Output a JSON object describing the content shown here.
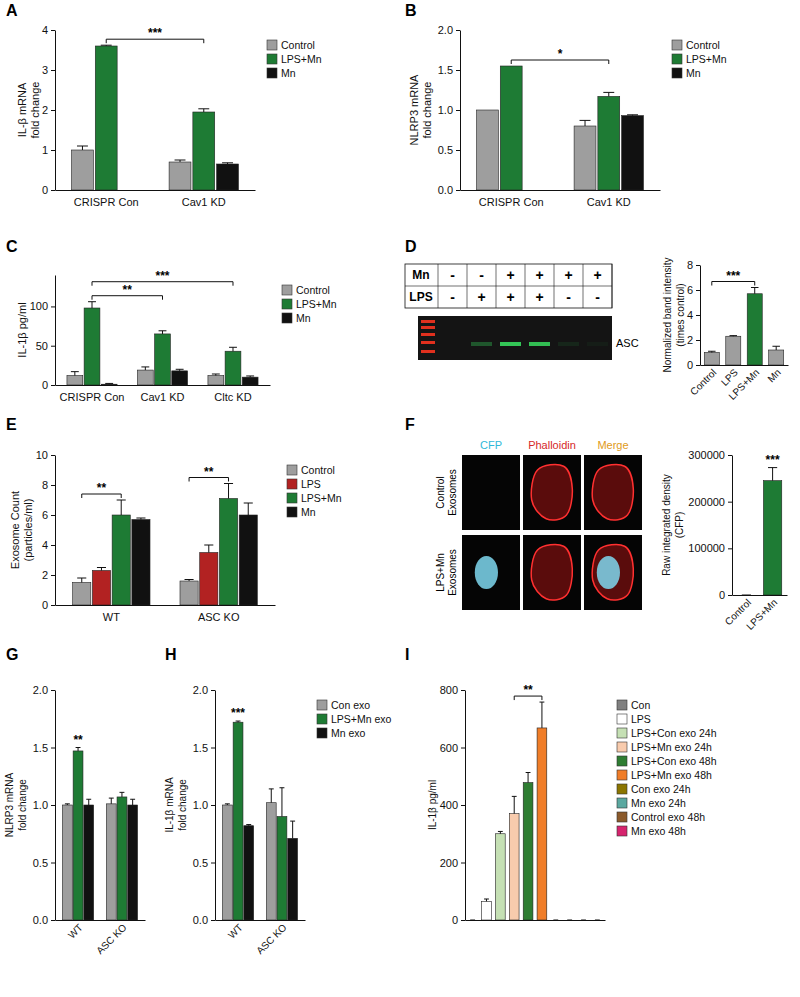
{
  "chart_data": [
    {
      "panel_label": "A",
      "type": "bar",
      "ylabel": [
        "IL-β mRNA",
        "fold change"
      ],
      "categories": [
        "CRISPR Con",
        "Cav1 KD"
      ],
      "series": [
        {
          "name": "Control",
          "color": "#9e9e9e",
          "values": [
            1.0,
            0.7
          ],
          "error": [
            0.1,
            0.05
          ]
        },
        {
          "name": "LPS+Mn",
          "color": "#1e7b34",
          "values": [
            3.6,
            1.95
          ],
          "error": [
            0.02,
            0.08
          ]
        },
        {
          "name": "Mn",
          "color": "#111111",
          "values": [
            null,
            0.65
          ],
          "error": [
            null,
            0.03
          ]
        }
      ],
      "ylim": [
        0,
        4
      ],
      "yticks": [
        0,
        1,
        2,
        3,
        4
      ],
      "legend": "right",
      "brackets": [
        {
          "label": "***",
          "from": [
            "LPS+Mn",
            "CRISPR Con"
          ],
          "to": [
            "LPS+Mn",
            "Cav1 KD"
          ]
        }
      ]
    },
    {
      "panel_label": "B",
      "type": "bar",
      "ylabel": [
        "NLRP3 mRNA",
        "fold change"
      ],
      "categories": [
        "CRISPR Con",
        "Cav1 KD"
      ],
      "series": [
        {
          "name": "Control",
          "color": "#9e9e9e",
          "values": [
            1.0,
            0.8
          ],
          "error": [
            null,
            0.07
          ]
        },
        {
          "name": "LPS+Mn",
          "color": "#1e7b34",
          "values": [
            1.55,
            1.17
          ],
          "error": [
            null,
            0.05
          ]
        },
        {
          "name": "Mn",
          "color": "#111111",
          "values": [
            null,
            0.93
          ],
          "error": [
            null,
            0.01
          ]
        }
      ],
      "ylim": [
        0,
        2
      ],
      "yticks": [
        {
          "value": 0,
          "label": "0.0"
        },
        0.5,
        {
          "value": 1,
          "label": "1.0"
        },
        1.5,
        {
          "value": 2,
          "label": "2.0"
        }
      ],
      "legend": "right",
      "brackets": [
        {
          "label": "*",
          "from": [
            "LPS+Mn",
            "CRISPR Con"
          ],
          "to": [
            "LPS+Mn",
            "Cav1 KD"
          ]
        }
      ]
    },
    {
      "panel_label": "C",
      "type": "bar",
      "ylabel": [
        "IL-1β pg/ml"
      ],
      "categories": [
        "CRISPR Con",
        "Cav1 KD",
        "Cltc KD"
      ],
      "series": [
        {
          "name": "Control",
          "color": "#9e9e9e",
          "values": [
            12,
            19,
            12
          ],
          "error": [
            5,
            4,
            2
          ]
        },
        {
          "name": "LPS+Mn",
          "color": "#1e7b34",
          "values": [
            98,
            65,
            43
          ],
          "error": [
            8,
            4,
            5
          ]
        },
        {
          "name": "Mn",
          "color": "#111111",
          "values": [
            1,
            18,
            10
          ],
          "error": [
            1,
            2,
            1.5
          ]
        }
      ],
      "ylim": [
        0,
        140
      ],
      "yticks": [
        0,
        50,
        100
      ],
      "legend": "right",
      "brackets": [
        {
          "label": "**",
          "from": [
            "LPS+Mn",
            "CRISPR Con"
          ],
          "to": [
            "LPS+Mn",
            "Cav1 KD"
          ]
        },
        {
          "label": "***",
          "from": [
            "LPS+Mn",
            "CRISPR Con"
          ],
          "to": [
            "LPS+Mn",
            "Cltc KD"
          ]
        }
      ]
    },
    {
      "panel_label": "D",
      "type": "bar",
      "ylabel": [
        "Normalized band intensity",
        "(times control)"
      ],
      "categories": [
        "Control",
        "LPS",
        "LPS+Mn",
        "Mn"
      ],
      "values": [
        1.0,
        2.3,
        5.7,
        1.2
      ],
      "error": [
        0.1,
        0.05,
        0.5,
        0.3
      ],
      "colors": [
        "#9e9e9e",
        "#9e9e9e",
        "#1e7b34",
        "#9e9e9e"
      ],
      "ylim": [
        0,
        8
      ],
      "yticks": [
        0,
        2,
        4,
        6,
        8
      ],
      "brackets": [
        {
          "label": "***",
          "from": "Control",
          "to": "LPS+Mn"
        }
      ]
    },
    {
      "panel_label": "E",
      "type": "bar",
      "ylabel": [
        "Exosome Count",
        "(particles/ml)"
      ],
      "categories": [
        "WT",
        "ASC KO"
      ],
      "series": [
        {
          "name": "Control",
          "color": "#9e9e9e",
          "values": [
            1.5,
            1.6
          ],
          "error": [
            0.3,
            0.1
          ]
        },
        {
          "name": "LPS",
          "color": "#b22222",
          "values": [
            2.3,
            3.5
          ],
          "error": [
            0.2,
            0.5
          ]
        },
        {
          "name": "LPS+Mn",
          "color": "#1e7b34",
          "values": [
            6.0,
            7.1
          ],
          "error": [
            1.0,
            1.0
          ]
        },
        {
          "name": "Mn",
          "color": "#111111",
          "values": [
            5.7,
            6.0
          ],
          "error": [
            0.1,
            0.8
          ]
        }
      ],
      "ylim": [
        0,
        10
      ],
      "yticks": [
        0,
        2,
        4,
        6,
        8,
        10
      ],
      "legend": "right",
      "brackets": [
        {
          "label": "**",
          "from": [
            "Control",
            "WT"
          ],
          "to": [
            "LPS+Mn",
            "WT"
          ]
        },
        {
          "label": "**",
          "from": [
            "Control",
            "ASC KO"
          ],
          "to": [
            "LPS+Mn",
            "ASC KO"
          ]
        }
      ]
    },
    {
      "panel_label": "F",
      "type": "bar",
      "ylabel": [
        "Raw integrated density",
        "(CFP)"
      ],
      "categories": [
        "Control",
        "LPS+Mn"
      ],
      "values": [
        0,
        245000
      ],
      "error": [
        0,
        28000
      ],
      "colors": [
        "#9e9e9e",
        "#1e7b34"
      ],
      "ylim": [
        0,
        300000
      ],
      "yticks": [
        0,
        100000,
        200000,
        300000
      ],
      "brackets": [
        {
          "label": "***",
          "at": "LPS+Mn"
        }
      ]
    },
    {
      "panel_label": "G",
      "type": "bar",
      "ylabel": [
        "NLRP3 mRNA",
        "fold change"
      ],
      "categories": [
        "WT",
        "ASC KO"
      ],
      "series": [
        {
          "name": "Con exo",
          "color": "#9e9e9e",
          "values": [
            1.0,
            1.01
          ],
          "error": [
            0.01,
            0.05
          ]
        },
        {
          "name": "LPS+Mn exo",
          "color": "#1e7b34",
          "values": [
            1.47,
            1.07
          ],
          "error": [
            0.03,
            0.04
          ]
        },
        {
          "name": "Mn exo",
          "color": "#111111",
          "values": [
            1.0,
            1.0
          ],
          "error": [
            0.05,
            0.05
          ]
        }
      ],
      "ylim": [
        0,
        2
      ],
      "yticks": [
        {
          "value": 0,
          "label": "0.0"
        },
        0.5,
        {
          "value": 1,
          "label": "1.0"
        },
        1.5,
        {
          "value": 2,
          "label": "2.0"
        }
      ],
      "brackets": [
        {
          "label": "**",
          "at": [
            "LPS+Mn exo",
            "WT"
          ]
        }
      ]
    },
    {
      "panel_label": "H",
      "type": "bar",
      "ylabel": [
        "IL-1β mRNA",
        "fold change"
      ],
      "categories": [
        "WT",
        "ASC KO"
      ],
      "series": [
        {
          "name": "Con exo",
          "color": "#9e9e9e",
          "values": [
            1.0,
            1.02
          ],
          "error": [
            0.01,
            0.12
          ]
        },
        {
          "name": "LPS+Mn exo",
          "color": "#1e7b34",
          "values": [
            1.72,
            0.9
          ],
          "error": [
            0.01,
            0.25
          ]
        },
        {
          "name": "Mn exo",
          "color": "#111111",
          "values": [
            0.82,
            0.71
          ],
          "error": [
            0.01,
            0.15
          ]
        }
      ],
      "ylim": [
        0,
        2
      ],
      "yticks": [
        {
          "value": 0,
          "label": "0.0"
        },
        0.5,
        {
          "value": 1,
          "label": "1.0"
        },
        1.5,
        {
          "value": 2,
          "label": "2.0"
        }
      ],
      "legend": "right",
      "brackets": [
        {
          "label": "***",
          "at": [
            "LPS+Mn exo",
            "WT"
          ]
        }
      ]
    },
    {
      "panel_label": "I",
      "type": "bar",
      "ylabel": [
        "IL-1β pg/ml"
      ],
      "categories": [
        "Con",
        "LPS",
        "LPS+Con exo 24h",
        "LPS+Mn exo 24h",
        "LPS+Con exo 48h",
        "LPS+Mn exo 48h",
        "Con exo 24h",
        "Mn exo 24h",
        "Control exo 48h",
        "Mn exo 48h"
      ],
      "values": [
        0,
        65,
        300,
        370,
        478,
        668,
        0,
        0,
        0,
        0
      ],
      "error": [
        0,
        8,
        8,
        60,
        35,
        90,
        0,
        0,
        0,
        0
      ],
      "colors": [
        "#808080",
        "#ffffff",
        "#c5e0b4",
        "#f8cbad",
        "#2e7d32",
        "#f07d28",
        "#8b7500",
        "#5ba8a0",
        "#8b5a2b",
        "#d6246e"
      ],
      "ylim": [
        0,
        800
      ],
      "yticks": [
        0,
        200,
        400,
        600,
        800
      ],
      "tick_labels": "y",
      "legend": "right",
      "brackets": [
        {
          "label": "**",
          "from": "LPS+Mn exo 24h",
          "to": "LPS+Mn exo 48h"
        }
      ]
    }
  ],
  "blot": {
    "rows": [
      {
        "label": "Mn",
        "cells": [
          "-",
          "-",
          "+",
          "+",
          "+",
          "+"
        ]
      },
      {
        "label": "LPS",
        "cells": [
          "-",
          "+",
          "+",
          "+",
          "-",
          "-"
        ]
      }
    ],
    "band_label": "ASC"
  },
  "micrograph": {
    "columns": [
      "CFP",
      "Phalloidin",
      "Merge"
    ],
    "rows": [
      [
        "Control",
        "Exosomes"
      ],
      [
        "LPS+Mn",
        "Exosomes"
      ]
    ]
  }
}
